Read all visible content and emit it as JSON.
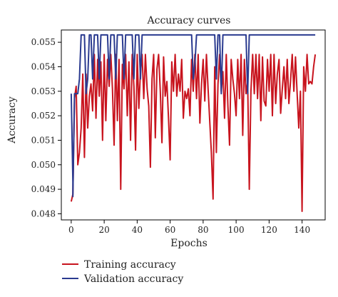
{
  "chart_data": {
    "type": "line",
    "title": "Accuracy curves",
    "xlabel": "Epochs",
    "ylabel": "Accuracy",
    "xlim": [
      -6,
      154
    ],
    "ylim": [
      0.04775,
      0.0555
    ],
    "x_ticks": [
      0,
      20,
      40,
      60,
      80,
      100,
      120,
      140
    ],
    "y_ticks": [
      0.048,
      0.049,
      0.05,
      0.051,
      0.052,
      0.053,
      0.054,
      0.055
    ],
    "y_tick_labels": [
      "0.048",
      "0.049",
      "0.050",
      "0.051",
      "0.052",
      "0.053",
      "0.054",
      "0.055"
    ],
    "grid": false,
    "legend_position": "below",
    "series": [
      {
        "name": "Training accuracy",
        "color": "#c8141e",
        "points": [
          [
            0,
            0.0485
          ],
          [
            1,
            0.0488
          ],
          [
            2,
            0.0527
          ],
          [
            3,
            0.0532
          ],
          [
            4,
            0.05
          ],
          [
            5,
            0.0505
          ],
          [
            6,
            0.0515
          ],
          [
            7,
            0.0537
          ],
          [
            8,
            0.0503
          ],
          [
            9,
            0.0537
          ],
          [
            10,
            0.0515
          ],
          [
            11,
            0.0528
          ],
          [
            12,
            0.0533
          ],
          [
            13,
            0.0522
          ],
          [
            14,
            0.0545
          ],
          [
            15,
            0.0519
          ],
          [
            16,
            0.0543
          ],
          [
            17,
            0.0528
          ],
          [
            18,
            0.0542
          ],
          [
            19,
            0.051
          ],
          [
            20,
            0.0545
          ],
          [
            21,
            0.0518
          ],
          [
            22,
            0.0543
          ],
          [
            23,
            0.0532
          ],
          [
            24,
            0.0545
          ],
          [
            25,
            0.0531
          ],
          [
            26,
            0.0508
          ],
          [
            27,
            0.0545
          ],
          [
            28,
            0.0518
          ],
          [
            29,
            0.0543
          ],
          [
            30,
            0.049
          ],
          [
            31,
            0.0541
          ],
          [
            32,
            0.0531
          ],
          [
            33,
            0.0545
          ],
          [
            34,
            0.052
          ],
          [
            35,
            0.0542
          ],
          [
            36,
            0.051
          ],
          [
            37,
            0.0545
          ],
          [
            38,
            0.0532
          ],
          [
            39,
            0.0506
          ],
          [
            40,
            0.0545
          ],
          [
            41,
            0.0523
          ],
          [
            42,
            0.0538
          ],
          [
            43,
            0.0545
          ],
          [
            44,
            0.0527
          ],
          [
            45,
            0.0545
          ],
          [
            46,
            0.0531
          ],
          [
            47,
            0.0524
          ],
          [
            48,
            0.0499
          ],
          [
            49,
            0.0535
          ],
          [
            50,
            0.0545
          ],
          [
            51,
            0.0511
          ],
          [
            52,
            0.0539
          ],
          [
            53,
            0.0545
          ],
          [
            54,
            0.053
          ],
          [
            55,
            0.0509
          ],
          [
            56,
            0.0544
          ],
          [
            57,
            0.0528
          ],
          [
            58,
            0.0534
          ],
          [
            59,
            0.0519
          ],
          [
            60,
            0.0502
          ],
          [
            61,
            0.0542
          ],
          [
            62,
            0.053
          ],
          [
            63,
            0.0545
          ],
          [
            64,
            0.0528
          ],
          [
            65,
            0.0537
          ],
          [
            66,
            0.053
          ],
          [
            67,
            0.0543
          ],
          [
            68,
            0.0519
          ],
          [
            69,
            0.053
          ],
          [
            70,
            0.0527
          ],
          [
            71,
            0.0531
          ],
          [
            72,
            0.052
          ],
          [
            73,
            0.0543
          ],
          [
            74,
            0.053
          ],
          [
            75,
            0.0545
          ],
          [
            76,
            0.0527
          ],
          [
            77,
            0.0545
          ],
          [
            78,
            0.0517
          ],
          [
            79,
            0.0533
          ],
          [
            80,
            0.0543
          ],
          [
            81,
            0.0526
          ],
          [
            82,
            0.0545
          ],
          [
            83,
            0.0531
          ],
          [
            84,
            0.0518
          ],
          [
            85,
            0.0505
          ],
          [
            86,
            0.0486
          ],
          [
            87,
            0.054
          ],
          [
            88,
            0.0505
          ],
          [
            89,
            0.0533
          ],
          [
            90,
            0.0545
          ],
          [
            91,
            0.053
          ],
          [
            92,
            0.0538
          ],
          [
            93,
            0.0519
          ],
          [
            94,
            0.0545
          ],
          [
            95,
            0.0524
          ],
          [
            96,
            0.0508
          ],
          [
            97,
            0.0543
          ],
          [
            98,
            0.0535
          ],
          [
            99,
            0.0529
          ],
          [
            100,
            0.052
          ],
          [
            101,
            0.0543
          ],
          [
            102,
            0.0527
          ],
          [
            103,
            0.0545
          ],
          [
            104,
            0.0512
          ],
          [
            105,
            0.0543
          ],
          [
            106,
            0.0529
          ],
          [
            107,
            0.0534
          ],
          [
            108,
            0.049
          ],
          [
            109,
            0.053
          ],
          [
            110,
            0.0545
          ],
          [
            111,
            0.0529
          ],
          [
            112,
            0.0545
          ],
          [
            113,
            0.0527
          ],
          [
            114,
            0.0545
          ],
          [
            115,
            0.0518
          ],
          [
            116,
            0.0544
          ],
          [
            117,
            0.0526
          ],
          [
            118,
            0.0524
          ],
          [
            119,
            0.0543
          ],
          [
            120,
            0.053
          ],
          [
            121,
            0.0545
          ],
          [
            122,
            0.052
          ],
          [
            123,
            0.0545
          ],
          [
            124,
            0.0525
          ],
          [
            125,
            0.0537
          ],
          [
            126,
            0.0543
          ],
          [
            127,
            0.0521
          ],
          [
            128,
            0.0531
          ],
          [
            129,
            0.054
          ],
          [
            130,
            0.0527
          ],
          [
            131,
            0.0543
          ],
          [
            132,
            0.0525
          ],
          [
            133,
            0.0534
          ],
          [
            134,
            0.0545
          ],
          [
            135,
            0.053
          ],
          [
            136,
            0.0544
          ],
          [
            137,
            0.0529
          ],
          [
            138,
            0.0515
          ],
          [
            139,
            0.053
          ],
          [
            140,
            0.0481
          ],
          [
            141,
            0.054
          ],
          [
            142,
            0.053
          ],
          [
            143,
            0.0545
          ],
          [
            144,
            0.0533
          ],
          [
            145,
            0.0534
          ],
          [
            146,
            0.0533
          ],
          [
            147,
            0.054
          ],
          [
            148,
            0.0545
          ]
        ]
      },
      {
        "name": "Validation accuracy",
        "color": "#2a3a8f",
        "points": [
          [
            0,
            0.0529
          ],
          [
            1,
            0.0493
          ],
          [
            1,
            0.0487
          ],
          [
            2,
            0.0529
          ],
          [
            3,
            0.0529
          ],
          [
            4,
            0.0529
          ],
          [
            5,
            0.0535
          ],
          [
            6,
            0.0553
          ],
          [
            7,
            0.0553
          ],
          [
            8,
            0.0553
          ],
          [
            9,
            0.0529
          ],
          [
            10,
            0.0535
          ],
          [
            11,
            0.0553
          ],
          [
            12,
            0.0553
          ],
          [
            13,
            0.0535
          ],
          [
            14,
            0.0553
          ],
          [
            15,
            0.0553
          ],
          [
            16,
            0.0553
          ],
          [
            17,
            0.0535
          ],
          [
            18,
            0.0553
          ],
          [
            19,
            0.0553
          ],
          [
            20,
            0.0553
          ],
          [
            21,
            0.0553
          ],
          [
            22,
            0.0553
          ],
          [
            23,
            0.0535
          ],
          [
            24,
            0.0553
          ],
          [
            25,
            0.0553
          ],
          [
            26,
            0.0553
          ],
          [
            27,
            0.0535
          ],
          [
            28,
            0.0553
          ],
          [
            29,
            0.0553
          ],
          [
            30,
            0.0553
          ],
          [
            31,
            0.0553
          ],
          [
            32,
            0.0535
          ],
          [
            33,
            0.0553
          ],
          [
            34,
            0.0553
          ],
          [
            35,
            0.0553
          ],
          [
            36,
            0.0553
          ],
          [
            37,
            0.0553
          ],
          [
            38,
            0.0535
          ],
          [
            39,
            0.0553
          ],
          [
            40,
            0.0553
          ],
          [
            41,
            0.0553
          ],
          [
            42,
            0.0535
          ],
          [
            43,
            0.0553
          ],
          [
            44,
            0.0553
          ],
          [
            50,
            0.0553
          ],
          [
            60,
            0.0553
          ],
          [
            70,
            0.0553
          ],
          [
            73,
            0.0553
          ],
          [
            74,
            0.0535
          ],
          [
            75,
            0.0541
          ],
          [
            76,
            0.0553
          ],
          [
            77,
            0.0553
          ],
          [
            80,
            0.0553
          ],
          [
            85,
            0.0553
          ],
          [
            87,
            0.0553
          ],
          [
            88,
            0.0535
          ],
          [
            89,
            0.0553
          ],
          [
            90,
            0.0553
          ],
          [
            91,
            0.0529
          ],
          [
            92,
            0.0553
          ],
          [
            95,
            0.0553
          ],
          [
            100,
            0.0553
          ],
          [
            105,
            0.0553
          ],
          [
            106,
            0.0553
          ],
          [
            107,
            0.0529
          ],
          [
            108,
            0.0553
          ],
          [
            110,
            0.0553
          ],
          [
            120,
            0.0553
          ],
          [
            130,
            0.0553
          ],
          [
            140,
            0.0553
          ],
          [
            148,
            0.0553
          ]
        ]
      }
    ]
  }
}
